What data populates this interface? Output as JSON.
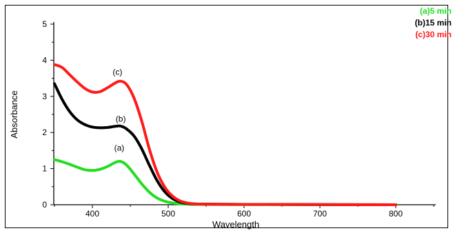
{
  "chart_data": {
    "type": "line",
    "xlabel": "Wavelength",
    "ylabel": "Absorbance",
    "xlim": [
      350,
      900
    ],
    "ylim": [
      0,
      5
    ],
    "x_ticks": [
      400,
      500,
      600,
      700,
      800
    ],
    "y_ticks": [
      0,
      1,
      2,
      3,
      4,
      5
    ],
    "grid": false,
    "legend_position": "top-right",
    "series": [
      {
        "name": "(a)5 min",
        "color": "#22dd22",
        "label": "(a)",
        "label_at": [
          436,
          1.5
        ],
        "points": [
          [
            350,
            1.25
          ],
          [
            360,
            1.19
          ],
          [
            370,
            1.12
          ],
          [
            380,
            1.04
          ],
          [
            390,
            0.97
          ],
          [
            400,
            0.95
          ],
          [
            410,
            0.98
          ],
          [
            420,
            1.06
          ],
          [
            430,
            1.17
          ],
          [
            437,
            1.2
          ],
          [
            445,
            1.1
          ],
          [
            455,
            0.85
          ],
          [
            465,
            0.58
          ],
          [
            475,
            0.35
          ],
          [
            485,
            0.19
          ],
          [
            495,
            0.1
          ],
          [
            505,
            0.05
          ],
          [
            520,
            0.02
          ],
          [
            540,
            0.01
          ],
          [
            600,
            0.005
          ],
          [
            700,
            0.0
          ],
          [
            800,
            0.0
          ]
        ]
      },
      {
        "name": "(b)15 min",
        "color": "#000000",
        "label": "(b)",
        "label_at": [
          438,
          2.3
        ],
        "points": [
          [
            350,
            3.35
          ],
          [
            360,
            2.92
          ],
          [
            370,
            2.58
          ],
          [
            380,
            2.35
          ],
          [
            390,
            2.22
          ],
          [
            400,
            2.15
          ],
          [
            410,
            2.13
          ],
          [
            420,
            2.14
          ],
          [
            430,
            2.17
          ],
          [
            437,
            2.18
          ],
          [
            445,
            2.1
          ],
          [
            455,
            1.9
          ],
          [
            465,
            1.55
          ],
          [
            475,
            1.1
          ],
          [
            485,
            0.68
          ],
          [
            495,
            0.37
          ],
          [
            505,
            0.18
          ],
          [
            515,
            0.08
          ],
          [
            525,
            0.04
          ],
          [
            540,
            0.02
          ],
          [
            600,
            0.01
          ],
          [
            700,
            0.005
          ],
          [
            800,
            0.0
          ]
        ]
      },
      {
        "name": "(c)30 min",
        "color": "#ff1a1a",
        "label": "(c)",
        "label_at": [
          434,
          3.6
        ],
        "points": [
          [
            350,
            3.88
          ],
          [
            360,
            3.8
          ],
          [
            370,
            3.6
          ],
          [
            380,
            3.4
          ],
          [
            390,
            3.22
          ],
          [
            400,
            3.12
          ],
          [
            410,
            3.13
          ],
          [
            420,
            3.24
          ],
          [
            430,
            3.37
          ],
          [
            437,
            3.42
          ],
          [
            445,
            3.33
          ],
          [
            455,
            2.95
          ],
          [
            465,
            2.32
          ],
          [
            475,
            1.55
          ],
          [
            485,
            0.92
          ],
          [
            495,
            0.5
          ],
          [
            505,
            0.25
          ],
          [
            515,
            0.11
          ],
          [
            525,
            0.05
          ],
          [
            540,
            0.02
          ],
          [
            600,
            0.01
          ],
          [
            700,
            0.005
          ],
          [
            800,
            0.0
          ]
        ]
      }
    ]
  }
}
